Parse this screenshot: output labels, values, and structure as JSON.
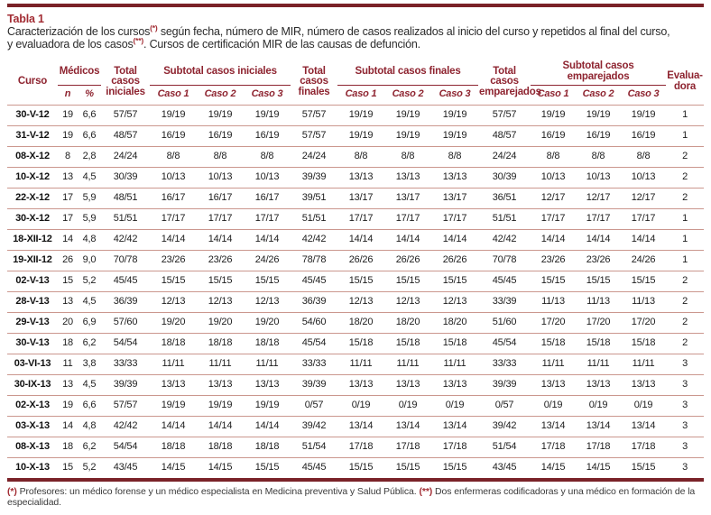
{
  "title": {
    "label": "Tabla 1",
    "caption_l1a": "Caracterización de los cursos",
    "caption_sup1": "(*)",
    "caption_l1b": " según fecha, número de MIR, número de casos realizados al inicio del curso y repetidos al final del curso,",
    "caption_l2a": "y evaluadora de los casos",
    "caption_sup2": "(**)",
    "caption_l2b": ". Cursos de certificación MIR de las causas de defunción."
  },
  "table": {
    "headers": {
      "curso": "Curso",
      "medicos": "Médicos",
      "n": "n",
      "pct": "%",
      "total_iniciales": "Total casos iniciales",
      "subtotal_iniciales": "Subtotal casos iniciales",
      "total_finales": "Total casos finales",
      "subtotal_finales": "Subtotal casos finales",
      "total_emparejados": "Total casos emparejados",
      "subtotal_emparejados": "Subtotal casos emparejados",
      "caso1": "Caso 1",
      "caso2": "Caso 2",
      "caso3": "Caso 3",
      "evaluadora": "Evalua- dora"
    },
    "column_keys": [
      "curso",
      "medicos-n",
      "medicos-pct",
      "total-casos-iniciales",
      "iniciales-caso1",
      "iniciales-caso2",
      "iniciales-caso3",
      "total-casos-finales",
      "finales-caso1",
      "finales-caso2",
      "finales-caso3",
      "total-casos-emparejados",
      "emparejados-caso1",
      "emparejados-caso2",
      "emparejados-caso3",
      "evaluadora"
    ],
    "rows": [
      [
        "30-V-12",
        "19",
        "6,6",
        "57/57",
        "19/19",
        "19/19",
        "19/19",
        "57/57",
        "19/19",
        "19/19",
        "19/19",
        "57/57",
        "19/19",
        "19/19",
        "19/19",
        "1"
      ],
      [
        "31-V-12",
        "19",
        "6,6",
        "48/57",
        "16/19",
        "16/19",
        "16/19",
        "57/57",
        "19/19",
        "19/19",
        "19/19",
        "48/57",
        "16/19",
        "16/19",
        "16/19",
        "1"
      ],
      [
        "08-X-12",
        "8",
        "2,8",
        "24/24",
        "8/8",
        "8/8",
        "8/8",
        "24/24",
        "8/8",
        "8/8",
        "8/8",
        "24/24",
        "8/8",
        "8/8",
        "8/8",
        "2"
      ],
      [
        "10-X-12",
        "13",
        "4,5",
        "30/39",
        "10/13",
        "10/13",
        "10/13",
        "39/39",
        "13/13",
        "13/13",
        "13/13",
        "30/39",
        "10/13",
        "10/13",
        "10/13",
        "2"
      ],
      [
        "22-X-12",
        "17",
        "5,9",
        "48/51",
        "16/17",
        "16/17",
        "16/17",
        "39/51",
        "13/17",
        "13/17",
        "13/17",
        "36/51",
        "12/17",
        "12/17",
        "12/17",
        "2"
      ],
      [
        "30-X-12",
        "17",
        "5,9",
        "51/51",
        "17/17",
        "17/17",
        "17/17",
        "51/51",
        "17/17",
        "17/17",
        "17/17",
        "51/51",
        "17/17",
        "17/17",
        "17/17",
        "1"
      ],
      [
        "18-XII-12",
        "14",
        "4,8",
        "42/42",
        "14/14",
        "14/14",
        "14/14",
        "42/42",
        "14/14",
        "14/14",
        "14/14",
        "42/42",
        "14/14",
        "14/14",
        "14/14",
        "1"
      ],
      [
        "19-XII-12",
        "26",
        "9,0",
        "70/78",
        "23/26",
        "23/26",
        "24/26",
        "78/78",
        "26/26",
        "26/26",
        "26/26",
        "70/78",
        "23/26",
        "23/26",
        "24/26",
        "1"
      ],
      [
        "02-V-13",
        "15",
        "5,2",
        "45/45",
        "15/15",
        "15/15",
        "15/15",
        "45/45",
        "15/15",
        "15/15",
        "15/15",
        "45/45",
        "15/15",
        "15/15",
        "15/15",
        "2"
      ],
      [
        "28-V-13",
        "13",
        "4,5",
        "36/39",
        "12/13",
        "12/13",
        "12/13",
        "36/39",
        "12/13",
        "12/13",
        "12/13",
        "33/39",
        "11/13",
        "11/13",
        "11/13",
        "2"
      ],
      [
        "29-V-13",
        "20",
        "6,9",
        "57/60",
        "19/20",
        "19/20",
        "19/20",
        "54/60",
        "18/20",
        "18/20",
        "18/20",
        "51/60",
        "17/20",
        "17/20",
        "17/20",
        "2"
      ],
      [
        "30-V-13",
        "18",
        "6,2",
        "54/54",
        "18/18",
        "18/18",
        "18/18",
        "45/54",
        "15/18",
        "15/18",
        "15/18",
        "45/54",
        "15/18",
        "15/18",
        "15/18",
        "2"
      ],
      [
        "03-VI-13",
        "11",
        "3,8",
        "33/33",
        "11/11",
        "11/11",
        "11/11",
        "33/33",
        "11/11",
        "11/11",
        "11/11",
        "33/33",
        "11/11",
        "11/11",
        "11/11",
        "3"
      ],
      [
        "30-IX-13",
        "13",
        "4,5",
        "39/39",
        "13/13",
        "13/13",
        "13/13",
        "39/39",
        "13/13",
        "13/13",
        "13/13",
        "39/39",
        "13/13",
        "13/13",
        "13/13",
        "3"
      ],
      [
        "02-X-13",
        "19",
        "6,6",
        "57/57",
        "19/19",
        "19/19",
        "19/19",
        "0/57",
        "0/19",
        "0/19",
        "0/19",
        "0/57",
        "0/19",
        "0/19",
        "0/19",
        "3"
      ],
      [
        "03-X-13",
        "14",
        "4,8",
        "42/42",
        "14/14",
        "14/14",
        "14/14",
        "39/42",
        "13/14",
        "13/14",
        "13/14",
        "39/42",
        "13/14",
        "13/14",
        "13/14",
        "3"
      ],
      [
        "08-X-13",
        "18",
        "6,2",
        "54/54",
        "18/18",
        "18/18",
        "18/18",
        "51/54",
        "17/18",
        "17/18",
        "17/18",
        "51/54",
        "17/18",
        "17/18",
        "17/18",
        "3"
      ],
      [
        "10-X-13",
        "15",
        "5,2",
        "43/45",
        "14/15",
        "14/15",
        "15/15",
        "45/45",
        "15/15",
        "15/15",
        "15/15",
        "43/45",
        "14/15",
        "14/15",
        "15/15",
        "3"
      ]
    ]
  },
  "footnote": {
    "sup1": "(*)",
    "text1": " Profesores: un médico forense y un médico especialista en Medicina preventiva y Salud Pública. ",
    "sup2": "(**)",
    "text2": " Dos enfermeras codificadoras y una médico en formación de la especialidad."
  },
  "colors": {
    "rule": "#7a2228",
    "header_text": "#8e2430",
    "row_separator": "#cb978e",
    "accent_red": "#a22c33",
    "body_text": "#1d1d1d"
  }
}
